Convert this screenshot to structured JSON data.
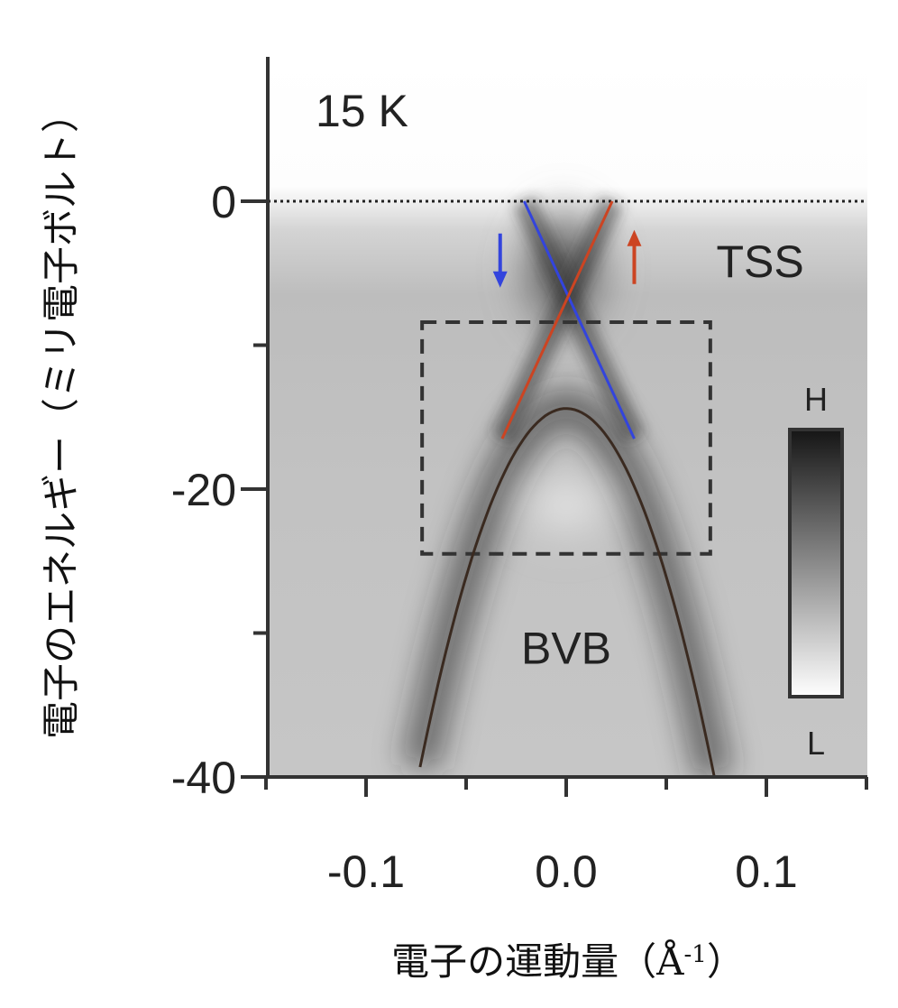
{
  "chart_data": {
    "type": "heatmap",
    "temperature_label": "15 K",
    "xlabel": "電子の運動量（Å",
    "xlabel_sup": "-1",
    "xlabel_close": "）",
    "ylabel": "電子のエネルギー（ミリ電子ボルト）",
    "xlim": [
      -0.15,
      0.15
    ],
    "ylim": [
      -40,
      10
    ],
    "x_ticks_major": [
      -0.1,
      0.0,
      0.1
    ],
    "x_tick_labels": [
      "-0.1",
      "0.0",
      "0.1"
    ],
    "x_ticks_minor": [
      -0.15,
      -0.05,
      0.05,
      0.15
    ],
    "y_ticks_major": [
      0,
      -20,
      -40
    ],
    "y_tick_labels": [
      "0",
      "-20",
      "-40"
    ],
    "y_ticks_minor": [
      -10,
      -30
    ],
    "fermi_level": 0,
    "grid": false,
    "colormap": {
      "high_label": "H",
      "low_label": "L",
      "high_color": "#151515",
      "low_color": "#ffffff"
    },
    "series": [
      {
        "name": "TSS ↓",
        "color": "#3344dd",
        "x": [
          -0.021,
          0.034
        ],
        "y": [
          0,
          -16.5
        ]
      },
      {
        "name": "TSS ↑",
        "color": "#cc4422",
        "x": [
          0.023,
          -0.032
        ],
        "y": [
          0,
          -16.5
        ]
      },
      {
        "name": "BVB",
        "color": "#3a2a20",
        "type": "parabola",
        "x_range": [
          -0.073,
          0.074
        ],
        "vertex": [
          0.0,
          -14.4
        ],
        "at_x": [
          0.074,
          -40
        ]
      }
    ],
    "annotations": [
      {
        "text": "TSS",
        "x": 0.075,
        "y": -4
      },
      {
        "text": "BVB",
        "x": 0.0,
        "y": -31
      },
      {
        "text": "↓",
        "color": "#3344dd",
        "x": -0.033,
        "y": -4
      },
      {
        "text": "↑",
        "color": "#cc4422",
        "x": 0.034,
        "y": -4
      }
    ],
    "dashed_box": {
      "x": [
        -0.072,
        0.072
      ],
      "y": [
        -24.5,
        -8.4
      ]
    }
  }
}
